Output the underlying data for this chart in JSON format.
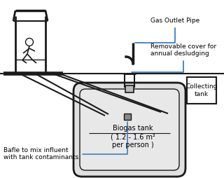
{
  "bg_color": "#ffffff",
  "line_color": "#1a1a1a",
  "blue_color": "#3a7fc1",
  "labels": {
    "gas_outlet": "Gas Outlet Pipe",
    "removable_cover": "Removable cover for\nannual desludging",
    "collecting_tank": "Collecting\ntank",
    "biogas_tank": "Biogas tank\n( 1.2 - 1.6 m²\nper person )",
    "bafle": "Bafle to mix influent\nwith tank contaminants"
  },
  "label_fontsize": 6.5,
  "figsize": [
    3.2,
    2.54
  ],
  "dpi": 100
}
